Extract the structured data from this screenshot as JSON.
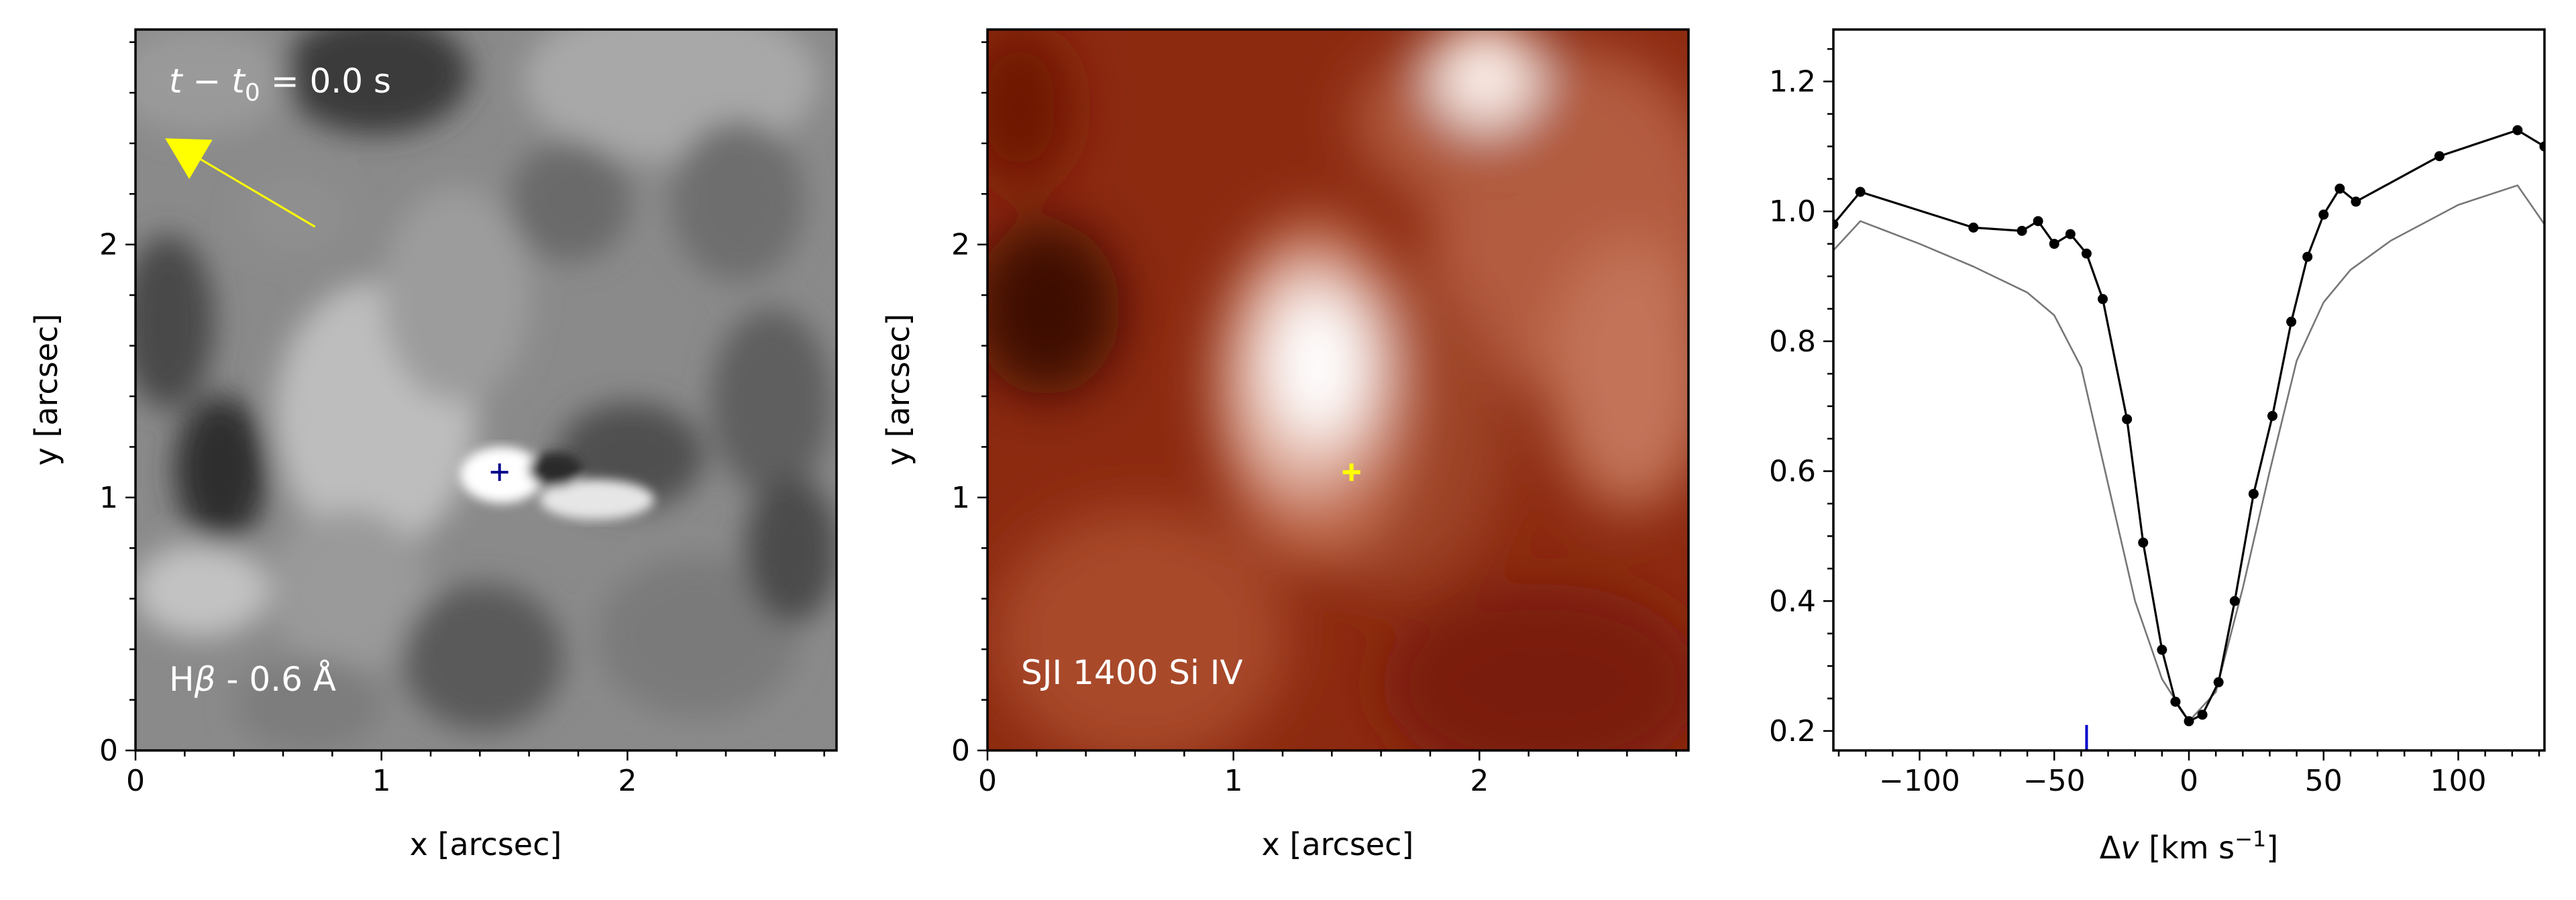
{
  "chart_data": [
    {
      "type": "heatmap",
      "colormap": "gray",
      "annotation_time": "t − t₀ = 0.0 s",
      "annotation_time_parts": {
        "t": "t",
        "minus": " − ",
        "t0": "t",
        "sub0": "0",
        "equals": " = 0.0 s"
      },
      "annotation_label_parts": {
        "pre": "H",
        "beta": "β",
        "post": " - 0.6 Å"
      },
      "xlabel": "x [arcsec]",
      "ylabel": "y [arcsec]",
      "xlim": [
        0,
        2.85
      ],
      "ylim": [
        0,
        2.85
      ],
      "xticks": [
        0,
        1,
        2
      ],
      "yticks": [
        0,
        1,
        2
      ],
      "marker": {
        "x": 1.48,
        "y": 1.1,
        "symbol": "+",
        "color": "#00008b"
      },
      "arrow": {
        "from": [
          0.73,
          2.07
        ],
        "to": [
          0.12,
          2.42
        ],
        "color": "#ffff00"
      }
    },
    {
      "type": "heatmap",
      "colormap": "red",
      "annotation_label": "SJI 1400 Si IV",
      "xlabel": "x [arcsec]",
      "ylabel": "y [arcsec]",
      "xlim": [
        0,
        2.85
      ],
      "ylim": [
        0,
        2.85
      ],
      "xticks": [
        0,
        1,
        2
      ],
      "yticks": [
        0,
        1,
        2
      ],
      "marker": {
        "x": 1.48,
        "y": 1.1,
        "symbol": "+",
        "color": "#ffff00"
      }
    },
    {
      "type": "line",
      "xlabel_parts": {
        "delta": "Δ",
        "v": "v",
        "unit": " [km s",
        "exp": "−1",
        "close": "]"
      },
      "xlim": [
        -132,
        132
      ],
      "ylim": [
        0.17,
        1.28
      ],
      "xticks": [
        -100,
        -50,
        0,
        50,
        100
      ],
      "xtick_labels": [
        "−100",
        "−50",
        "0",
        "50",
        "100"
      ],
      "yticks": [
        0.2,
        0.4,
        0.6,
        0.8,
        1.0,
        1.2
      ],
      "ytick_labels": [
        "0.2",
        "0.4",
        "0.6",
        "0.8",
        "1.0",
        "1.2"
      ],
      "series": [
        {
          "color": "#000000",
          "markers": true,
          "x": [
            -132,
            -122,
            -80,
            -62,
            -56,
            -50,
            -44,
            -38,
            -32,
            -23,
            -17,
            -10,
            -5,
            0,
            5,
            11,
            17,
            24,
            31,
            38,
            44,
            50,
            56,
            62,
            93,
            122,
            132
          ],
          "y": [
            0.98,
            1.03,
            0.975,
            0.97,
            0.985,
            0.95,
            0.965,
            0.935,
            0.865,
            0.68,
            0.49,
            0.325,
            0.245,
            0.215,
            0.225,
            0.275,
            0.4,
            0.565,
            0.685,
            0.83,
            0.93,
            0.995,
            1.035,
            1.015,
            1.085,
            1.125,
            1.1
          ]
        },
        {
          "color": "#777777",
          "markers": false,
          "x": [
            -132,
            -122,
            -100,
            -80,
            -60,
            -50,
            -40,
            -30,
            -20,
            -10,
            0,
            10,
            20,
            30,
            40,
            50,
            60,
            75,
            100,
            122,
            132
          ],
          "y": [
            0.94,
            0.985,
            0.95,
            0.915,
            0.875,
            0.84,
            0.76,
            0.58,
            0.4,
            0.28,
            0.215,
            0.26,
            0.42,
            0.6,
            0.77,
            0.86,
            0.91,
            0.955,
            1.01,
            1.04,
            0.98
          ]
        }
      ],
      "vmarker": {
        "x": -38,
        "color": "#0000cc"
      }
    }
  ]
}
